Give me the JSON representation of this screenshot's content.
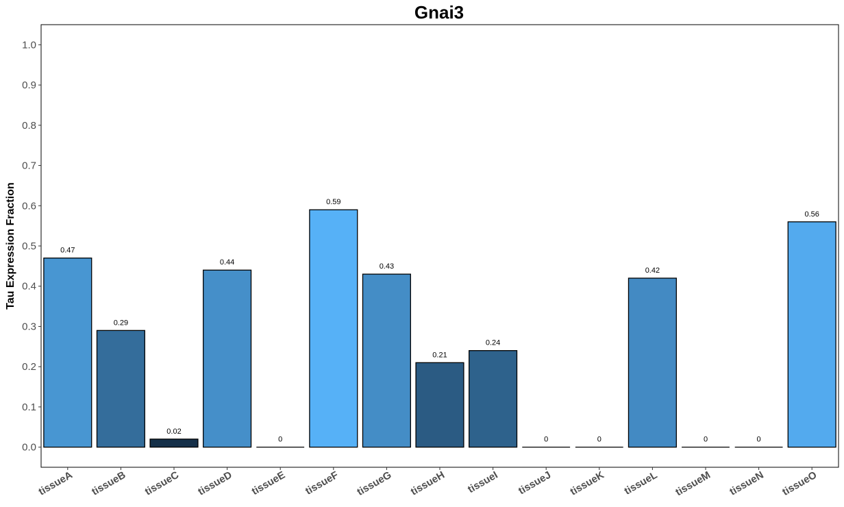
{
  "chart_data": {
    "type": "bar",
    "title": "Gnai3",
    "xlabel": "",
    "ylabel": "Tau Expression Fraction",
    "ylim": [
      -0.05,
      1.05
    ],
    "yticks": [
      "0.0",
      "0.1",
      "0.2",
      "0.3",
      "0.4",
      "0.5",
      "0.6",
      "0.7",
      "0.8",
      "0.9",
      "1.0"
    ],
    "grid": false,
    "categories": [
      "tissueA",
      "tissueB",
      "tissueC",
      "tissueD",
      "tissueE",
      "tissueF",
      "tissueG",
      "tissueH",
      "tissueI",
      "tissueJ",
      "tissueK",
      "tissueL",
      "tissueM",
      "tissueN",
      "tissueO"
    ],
    "values": [
      0.47,
      0.29,
      0.02,
      0.44,
      0,
      0.59,
      0.43,
      0.21,
      0.24,
      0,
      0,
      0.42,
      0,
      0,
      0.56
    ],
    "data_labels": [
      "0.47",
      "0.29",
      "0.02",
      "0.44",
      "0",
      "0.59",
      "0.43",
      "0.21",
      "0.24",
      "0",
      "0",
      "0.42",
      "0",
      "0",
      "0.56"
    ],
    "fill_scale": {
      "low": "#132b43",
      "high": "#56b1f7"
    },
    "bar_outline": "#000000"
  }
}
